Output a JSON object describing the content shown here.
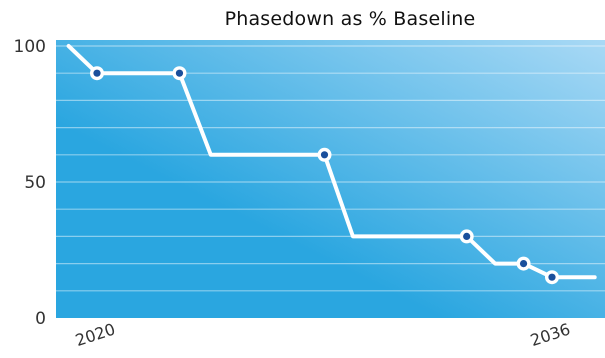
{
  "chart_data": {
    "type": "line",
    "title": "Phasedown as % Baseline",
    "xlabel": "",
    "ylabel": "",
    "xlim": [
      2019,
      2037.5
    ],
    "ylim": [
      0,
      102
    ],
    "y_ticks": [
      0,
      50,
      100
    ],
    "x_ticks": [
      2020,
      2036
    ],
    "grid": "horizontal",
    "colors": {
      "background_left": "#2aa6e0",
      "background_right": "#a9d9f5",
      "line": "#ffffff",
      "marker": "#1a4f9c"
    },
    "series": [
      {
        "points": [
          {
            "x": 2019.0,
            "y": 100,
            "marker": false
          },
          {
            "x": 2020.0,
            "y": 90,
            "marker": true
          },
          {
            "x": 2022.9,
            "y": 90,
            "marker": true
          },
          {
            "x": 2024.0,
            "y": 60,
            "marker": false
          },
          {
            "x": 2028.0,
            "y": 60,
            "marker": true
          },
          {
            "x": 2029.0,
            "y": 30,
            "marker": false
          },
          {
            "x": 2033.0,
            "y": 30,
            "marker": true
          },
          {
            "x": 2034.0,
            "y": 20,
            "marker": false
          },
          {
            "x": 2035.0,
            "y": 20,
            "marker": true
          },
          {
            "x": 2036.0,
            "y": 15,
            "marker": true
          },
          {
            "x": 2037.5,
            "y": 15,
            "marker": false
          }
        ]
      }
    ]
  }
}
